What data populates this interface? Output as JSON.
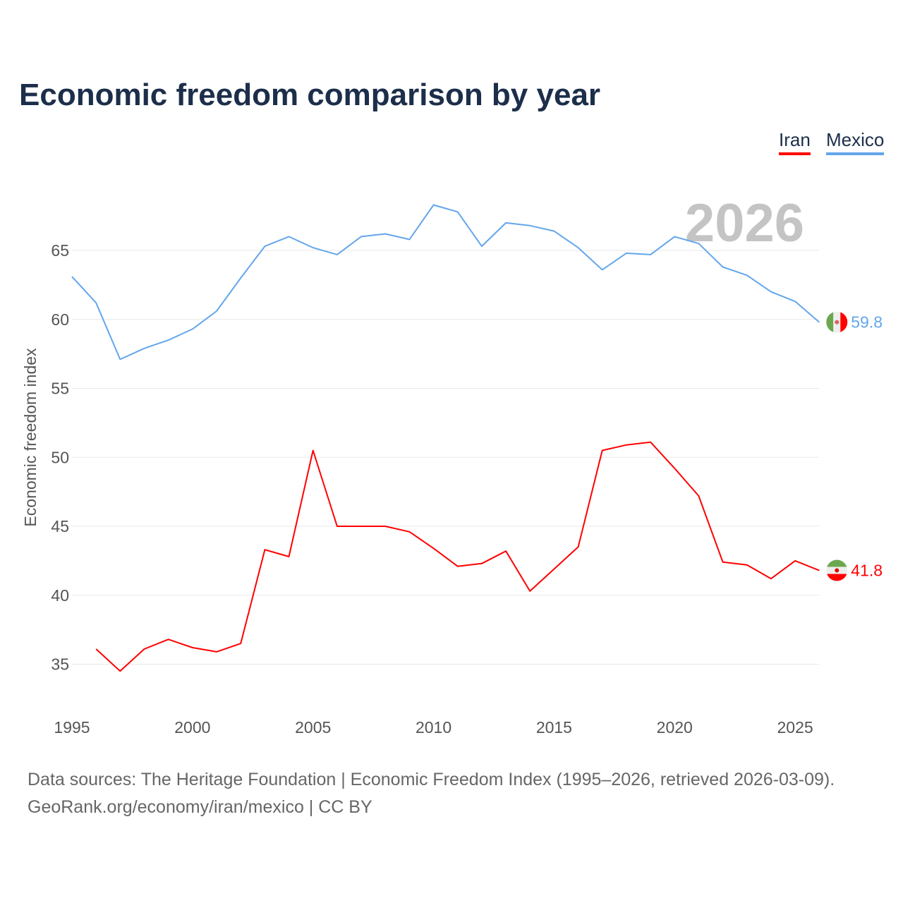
{
  "chart_data": {
    "type": "line",
    "title": "Economic freedom comparison by year",
    "xlabel": "",
    "ylabel": "Economic freedom index",
    "xlim": [
      1995,
      2026
    ],
    "ylim": [
      32,
      70
    ],
    "x_ticks": [
      "1995",
      "2000",
      "2005",
      "2010",
      "2015",
      "2020",
      "2025"
    ],
    "y_ticks": [
      "35",
      "40",
      "45",
      "50",
      "55",
      "60",
      "65"
    ],
    "grid": true,
    "legend": "top-right",
    "year_watermark": "2026",
    "series": [
      {
        "name": "Iran",
        "color": "#ff0000",
        "end_label": "41.8",
        "flag": "iran-flag",
        "x": [
          1996,
          1997,
          1998,
          1999,
          2000,
          2001,
          2002,
          2003,
          2004,
          2005,
          2006,
          2007,
          2008,
          2009,
          2010,
          2011,
          2012,
          2013,
          2014,
          2015,
          2016,
          2017,
          2018,
          2019,
          2020,
          2021,
          2022,
          2023,
          2024,
          2025,
          2026
        ],
        "values": [
          36.1,
          34.5,
          36.1,
          36.8,
          36.2,
          35.9,
          36.5,
          43.3,
          42.8,
          50.5,
          45.0,
          45.0,
          45.0,
          44.6,
          43.4,
          42.1,
          42.3,
          43.2,
          40.3,
          41.9,
          43.5,
          50.5,
          50.9,
          51.1,
          49.2,
          47.2,
          42.4,
          42.2,
          41.2,
          42.5,
          41.8
        ]
      },
      {
        "name": "Mexico",
        "color": "#63a6ec",
        "end_label": "59.8",
        "flag": "mexico-flag",
        "x": [
          1995,
          1996,
          1997,
          1998,
          1999,
          2000,
          2001,
          2002,
          2003,
          2004,
          2005,
          2006,
          2007,
          2008,
          2009,
          2010,
          2011,
          2012,
          2013,
          2014,
          2015,
          2016,
          2017,
          2018,
          2019,
          2020,
          2021,
          2022,
          2023,
          2024,
          2025,
          2026
        ],
        "values": [
          63.1,
          61.2,
          57.1,
          57.9,
          58.5,
          59.3,
          60.6,
          63.0,
          65.3,
          66.0,
          65.2,
          64.7,
          66.0,
          66.2,
          65.8,
          68.3,
          67.8,
          65.3,
          67.0,
          66.8,
          66.4,
          65.2,
          63.6,
          64.8,
          64.7,
          66.0,
          65.5,
          63.8,
          63.2,
          62.0,
          61.3,
          59.8
        ]
      }
    ]
  },
  "footer": {
    "line1": "Data sources: The Heritage Foundation | Economic Freedom Index (1995–2026, retrieved 2026-03-09).",
    "line2": "GeoRank.org/economy/iran/mexico | CC BY"
  }
}
